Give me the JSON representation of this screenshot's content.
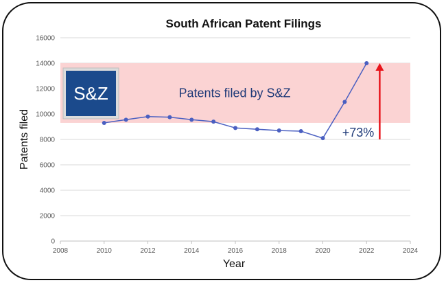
{
  "chart_data": {
    "type": "line",
    "title": "South African Patent Filings",
    "xlabel": "Year",
    "ylabel": "Patents filed",
    "xlim": [
      2008,
      2024
    ],
    "ylim": [
      0,
      16000
    ],
    "x_ticks": [
      "2008",
      "2010",
      "2012",
      "2014",
      "2016",
      "2018",
      "2020",
      "2022",
      "2024"
    ],
    "y_ticks": [
      "0",
      "2000",
      "4000",
      "6000",
      "8000",
      "10000",
      "12000",
      "14000",
      "16000"
    ],
    "grid": "horizontal",
    "series": [
      {
        "x": [
          2010,
          2011,
          2012,
          2013,
          2014,
          2015,
          2016,
          2017,
          2018,
          2019,
          2020,
          2021,
          2022
        ],
        "values": [
          9300,
          9550,
          9800,
          9750,
          9550,
          9400,
          8900,
          8800,
          8700,
          8650,
          8100,
          10950,
          14000
        ]
      }
    ],
    "highlight_band": {
      "y_range": [
        9300,
        14000
      ],
      "label": "Patents filed by S&Z"
    },
    "annotation": {
      "text": "+73%",
      "arrow_x": 2022.6,
      "arrow_y_range": [
        8000,
        14000
      ]
    },
    "logo": {
      "text": "S&Z"
    },
    "colors": {
      "line": "#4a5fc1",
      "band": "#fbd3d3",
      "arrow": "#e8141b",
      "logo_bg": "#1b4a8c",
      "text_accent": "#1f3a78"
    }
  }
}
